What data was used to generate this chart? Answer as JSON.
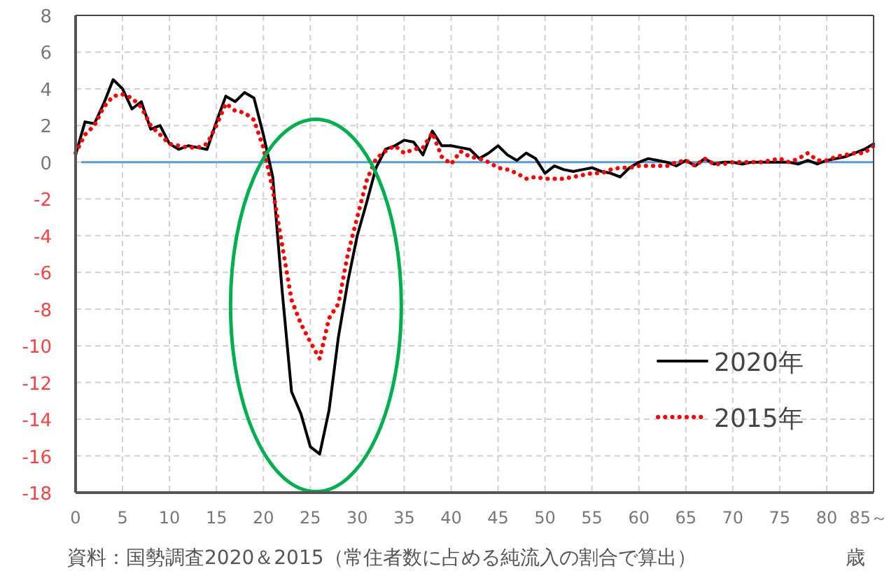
{
  "chart_data": {
    "type": "line",
    "x": [
      0,
      1,
      2,
      3,
      4,
      5,
      6,
      7,
      8,
      9,
      10,
      11,
      12,
      13,
      14,
      15,
      16,
      17,
      18,
      19,
      20,
      21,
      22,
      23,
      24,
      25,
      26,
      27,
      28,
      29,
      30,
      31,
      32,
      33,
      34,
      35,
      36,
      37,
      38,
      39,
      40,
      41,
      42,
      43,
      44,
      45,
      46,
      47,
      48,
      49,
      50,
      51,
      52,
      53,
      54,
      55,
      56,
      57,
      58,
      59,
      60,
      61,
      62,
      63,
      64,
      65,
      66,
      67,
      68,
      69,
      70,
      71,
      72,
      73,
      74,
      75,
      76,
      77,
      78,
      79,
      80,
      81,
      82,
      83,
      84,
      85
    ],
    "series": [
      {
        "name": "2020年",
        "color": "#000000",
        "line_style": "solid",
        "values": [
          0.4,
          2.2,
          2.1,
          3.2,
          4.5,
          4.0,
          2.9,
          3.3,
          1.8,
          2.0,
          1.0,
          0.7,
          0.9,
          0.8,
          0.7,
          2.2,
          3.6,
          3.3,
          3.8,
          3.5,
          1.5,
          -0.8,
          -7,
          -12.5,
          -13.7,
          -15.5,
          -15.9,
          -13.5,
          -9.5,
          -6.5,
          -4,
          -2.2,
          -0.3,
          0.7,
          0.9,
          1.2,
          1.1,
          0.4,
          1.7,
          0.9,
          0.9,
          0.8,
          0.7,
          0.2,
          0.5,
          0.9,
          0.4,
          0.1,
          0.5,
          0.2,
          -0.6,
          -0.2,
          -0.4,
          -0.5,
          -0.4,
          -0.3,
          -0.5,
          -0.6,
          -0.8,
          -0.3,
          0,
          0.2,
          0.1,
          0,
          -0.2,
          0.1,
          -0.2,
          0.2,
          -0.1,
          0,
          0,
          -0.1,
          0,
          0,
          0,
          0,
          0,
          -0.1,
          0.1,
          -0.1,
          0.1,
          0.2,
          0.3,
          0.5,
          0.7,
          1.0
        ]
      },
      {
        "name": "2015年",
        "color": "#ff0000",
        "line_style": "dotted",
        "values": [
          0.5,
          1.5,
          2.0,
          3.0,
          3.6,
          3.7,
          3.5,
          3.0,
          2.0,
          1.5,
          1.0,
          0.9,
          0.8,
          0.8,
          1.0,
          2.0,
          3.2,
          2.8,
          2.7,
          2.3,
          0.8,
          -1.5,
          -4.5,
          -7.5,
          -8.8,
          -9.8,
          -10.7,
          -8.5,
          -7.7,
          -5,
          -3,
          -1.0,
          0.2,
          0.6,
          0.9,
          0.5,
          0.7,
          0.8,
          1.6,
          0.3,
          -0.1,
          0.6,
          0.3,
          0.2,
          0,
          -0.3,
          -0.4,
          -0.6,
          -0.9,
          -0.8,
          -0.9,
          -0.9,
          -0.9,
          -0.8,
          -0.7,
          -0.6,
          -0.6,
          -0.4,
          -0.3,
          -0.3,
          -0.2,
          -0.2,
          -0.2,
          -0.2,
          0,
          0.1,
          -0.2,
          0.2,
          -0.1,
          -0.1,
          0,
          0,
          0,
          0,
          0.1,
          0.2,
          0,
          0.2,
          0.5,
          0.1,
          0.1,
          0.3,
          0.4,
          0.5,
          0.5,
          0.9
        ]
      }
    ],
    "xlim": [
      0,
      85
    ],
    "ylim": [
      -18,
      8
    ],
    "xticks": [
      0,
      5,
      10,
      15,
      20,
      25,
      30,
      35,
      40,
      45,
      50,
      55,
      60,
      65,
      70,
      75,
      80,
      {
        "value": 85,
        "label": "85～"
      }
    ],
    "yticks": [
      -18,
      -16,
      -14,
      -12,
      -10,
      -8,
      -6,
      -4,
      -2,
      0,
      2,
      4,
      6,
      8
    ],
    "xlabel": "歳",
    "ref_lines": [
      {
        "axis": "y",
        "value": 0,
        "color": "#5b9bd5"
      }
    ],
    "grid": true,
    "legend": "bottom right",
    "marker": "none",
    "annotations": [
      "資料：国勢調査2020＆2015（常住者数に占める純流入の割合で算出）"
    ]
  }
}
